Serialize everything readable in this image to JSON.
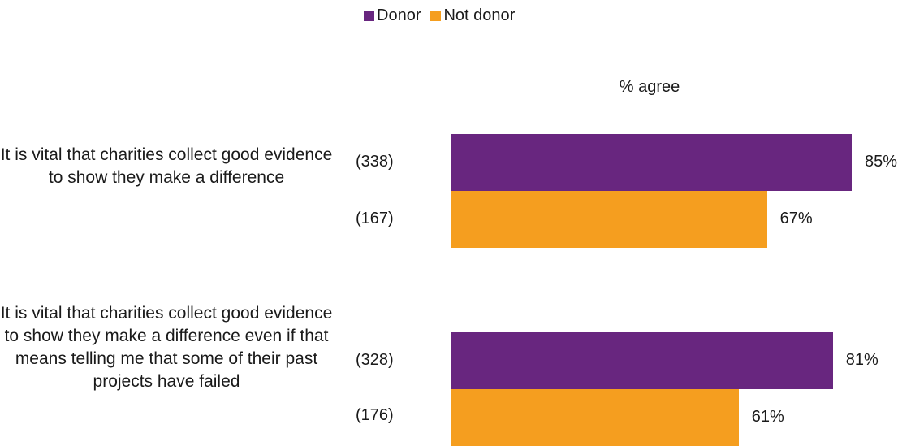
{
  "chart_data": {
    "type": "bar",
    "orientation": "horizontal",
    "subtitle": "% agree",
    "legend_position": "top",
    "categories": [
      "It is vital that charities collect good evidence to show they make a difference",
      "It is vital that charities collect good evidence to show they make a difference even if that means telling me that some of their past projects have failed"
    ],
    "series": [
      {
        "name": "Donor",
        "color": "#68267F",
        "values": [
          85,
          81
        ],
        "value_labels": [
          "85%",
          "81%"
        ],
        "base_labels": [
          "(338)",
          "(328)"
        ]
      },
      {
        "name": "Not donor",
        "color": "#F59E1F",
        "values": [
          67,
          61
        ],
        "value_labels": [
          "67%",
          "61%"
        ],
        "base_labels": [
          "(167)",
          "(176)"
        ]
      }
    ],
    "xlim": [
      0,
      100
    ],
    "grid": false
  }
}
